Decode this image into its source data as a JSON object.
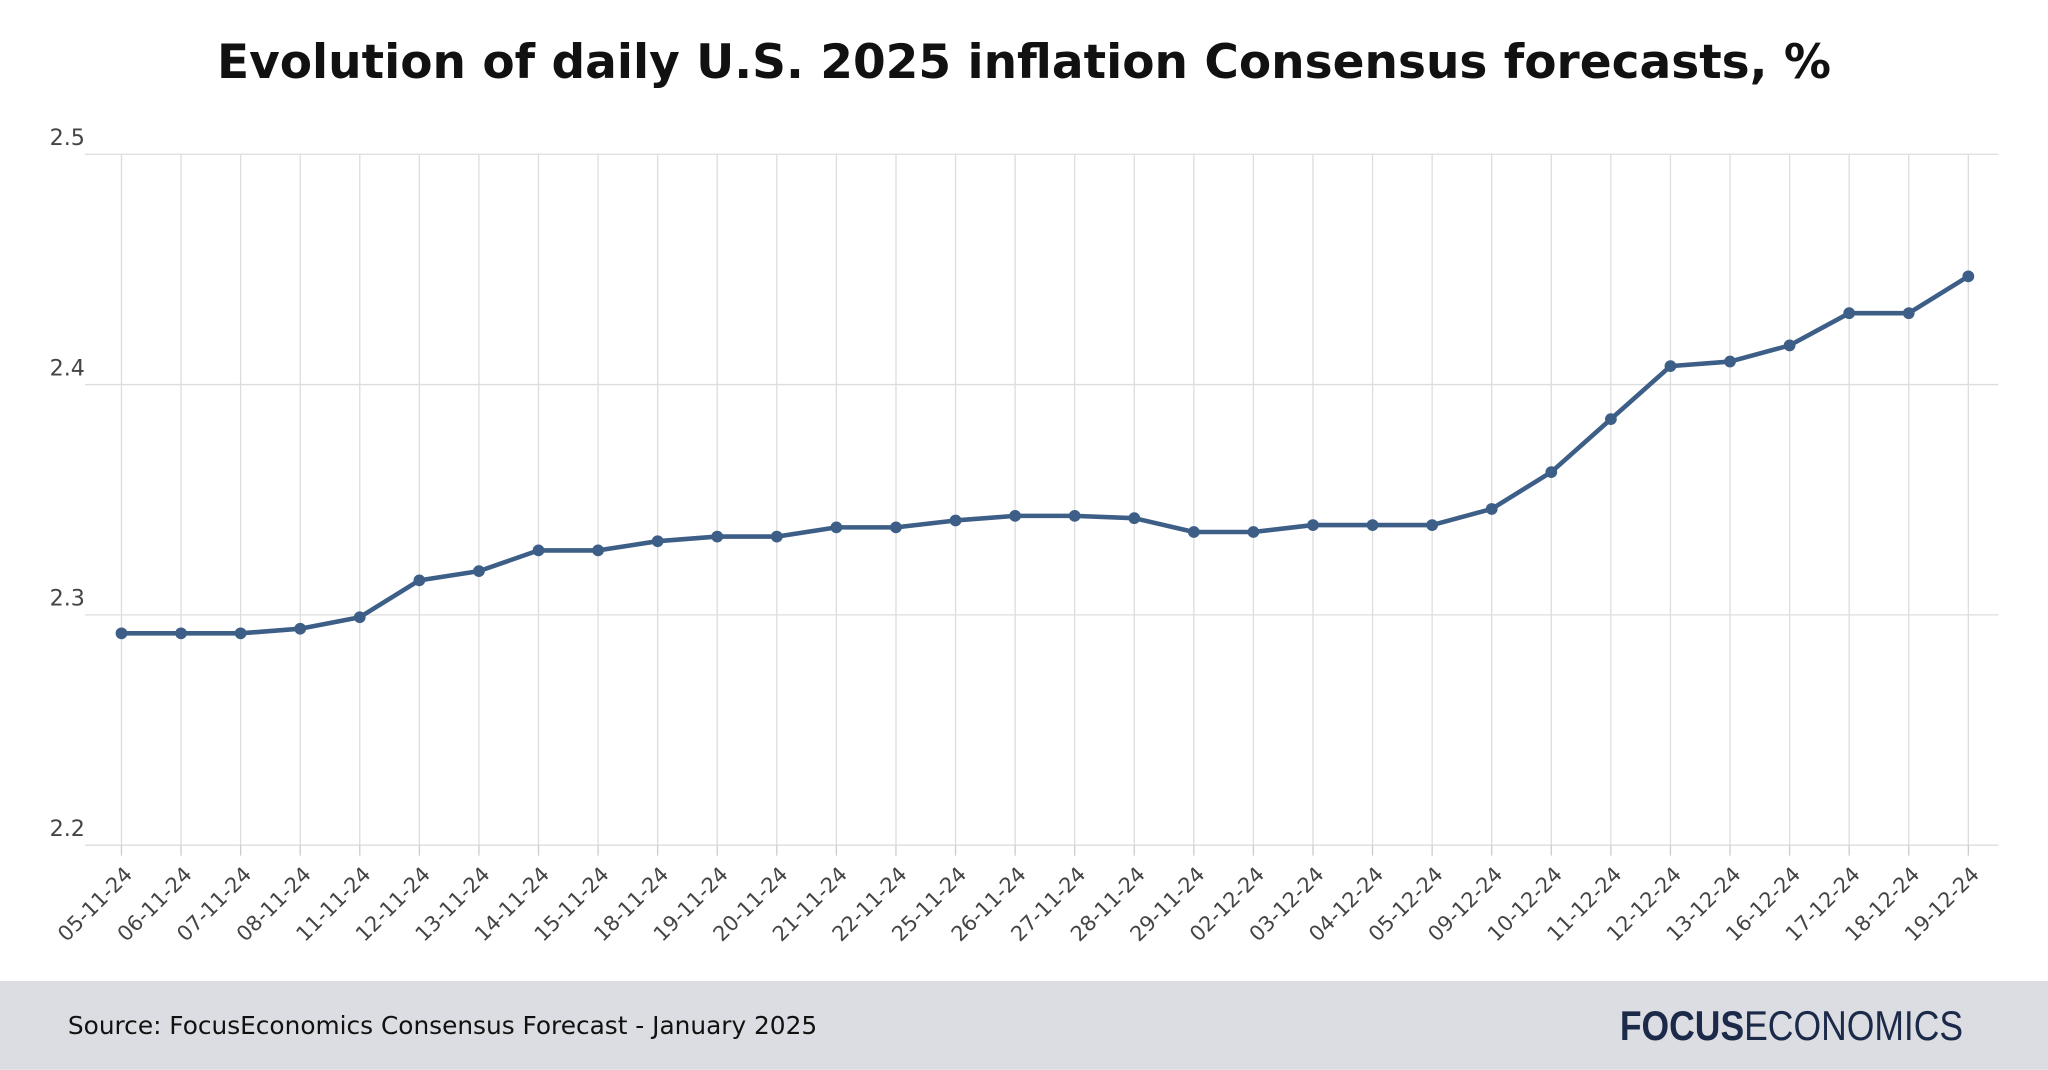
{
  "chart_data": {
    "type": "line",
    "title": "Evolution of daily U.S. 2025 inflation Consensus forecasts, %",
    "categories": [
      "05-11-24",
      "06-11-24",
      "07-11-24",
      "08-11-24",
      "11-11-24",
      "12-11-24",
      "13-11-24",
      "14-11-24",
      "15-11-24",
      "18-11-24",
      "19-11-24",
      "20-11-24",
      "21-11-24",
      "22-11-24",
      "25-11-24",
      "26-11-24",
      "27-11-24",
      "28-11-24",
      "29-11-24",
      "02-12-24",
      "03-12-24",
      "04-12-24",
      "05-12-24",
      "09-12-24",
      "10-12-24",
      "11-12-24",
      "12-12-24",
      "13-12-24",
      "16-12-24",
      "17-12-24",
      "18-12-24",
      "19-12-24"
    ],
    "values": [
      2.292,
      2.292,
      2.292,
      2.294,
      2.299,
      2.315,
      2.319,
      2.328,
      2.328,
      2.332,
      2.334,
      2.334,
      2.338,
      2.338,
      2.341,
      2.343,
      2.343,
      2.342,
      2.336,
      2.336,
      2.339,
      2.339,
      2.339,
      2.346,
      2.362,
      2.385,
      2.408,
      2.41,
      2.417,
      2.431,
      2.431,
      2.447
    ],
    "color": "#3d5f87",
    "ylim": [
      2.2,
      2.5
    ],
    "yticks": [
      2.2,
      2.3,
      2.4,
      2.5
    ],
    "grid": true
  },
  "footer": {
    "source": "Source: FocusEconomics Consensus Forecast - January 2025",
    "logo_bold": "FOCUS",
    "logo_light": "ECONOMICS"
  }
}
